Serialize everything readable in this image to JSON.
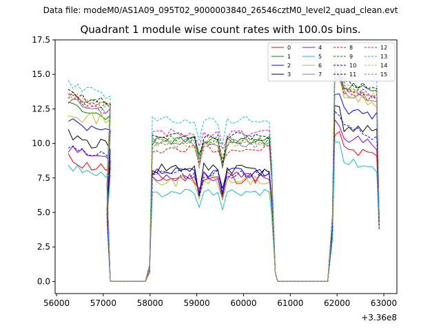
{
  "header": {
    "file_line": "Data file: modeM0/AS1A09_095T02_9000003840_26546cztM0_level2_quad_clean.evt",
    "title": "Quadrant 1 module wise count rates with 100.0s bins."
  },
  "chart_data": {
    "type": "line",
    "x_offset_label": "+3.36e8",
    "xlim": [
      55970,
      63280
    ],
    "ylim": [
      -0.875,
      17.5
    ],
    "x_ticks": [
      56000,
      57000,
      58000,
      59000,
      60000,
      61000,
      62000,
      63000
    ],
    "x_tick_labels": [
      "56000",
      "57000",
      "58000",
      "59000",
      "60000",
      "61000",
      "62000",
      "63000"
    ],
    "y_ticks": [
      0,
      2.5,
      5,
      7.5,
      10,
      12.5,
      15,
      17.5
    ],
    "y_tick_labels": [
      "0.0",
      "2.5",
      "5.0",
      "7.5",
      "10.0",
      "12.5",
      "15.0",
      "17.5"
    ],
    "legend": {
      "placement": "top-right",
      "columns": [
        [
          "0",
          "1",
          "2",
          "3"
        ],
        [
          "4",
          "5",
          "6",
          "7"
        ],
        [
          "8",
          "9",
          "10",
          "11"
        ],
        [
          "12",
          "13",
          "14",
          "15"
        ]
      ]
    },
    "segments": [
      {
        "start": 56250,
        "n": 10
      },
      {
        "start": 58050,
        "n": 26
      },
      {
        "start": 61950,
        "n": 10
      }
    ],
    "gap_x": [
      57150,
      57300,
      57500,
      57700,
      57900,
      61000,
      61200,
      61400,
      61600,
      61800
    ],
    "series": [
      {
        "name": "0",
        "color": "#ff0000",
        "dash": "solid",
        "base": [
          8.6,
          7.5,
          9.7
        ],
        "noise": 0.45,
        "seed": 11
      },
      {
        "name": "1",
        "color": "#008000",
        "dash": "solid",
        "base": [
          12.4,
          10.2,
          14.4
        ],
        "noise": 0.35,
        "seed": 23
      },
      {
        "name": "2",
        "color": "#0000ff",
        "dash": "solid",
        "base": [
          11.2,
          7.9,
          12.7
        ],
        "noise": 0.35,
        "seed": 37
      },
      {
        "name": "3",
        "color": "#000000",
        "dash": "solid",
        "base": [
          10.3,
          8.2,
          11.4
        ],
        "noise": 0.45,
        "seed": 41
      },
      {
        "name": "4",
        "color": "#9400d3",
        "dash": "solid",
        "base": [
          9.4,
          7.6,
          10.6
        ],
        "noise": 0.35,
        "seed": 53
      },
      {
        "name": "5",
        "color": "#17becf",
        "dash": "solid",
        "base": [
          8.0,
          6.4,
          8.9
        ],
        "noise": 0.3,
        "seed": 61
      },
      {
        "name": "6",
        "color": "#bcbd22",
        "dash": "solid",
        "base": [
          12.1,
          7.3,
          13.6
        ],
        "noise": 0.45,
        "seed": 71
      },
      {
        "name": "7",
        "color": "#7f7f7f",
        "dash": "solid",
        "base": [
          12.9,
          10.1,
          13.9
        ],
        "noise": 0.35,
        "seed": 83
      },
      {
        "name": "8",
        "color": "#ff0000",
        "dash": "dashed",
        "base": [
          13.1,
          9.6,
          13.9
        ],
        "noise": 0.35,
        "seed": 97
      },
      {
        "name": "9",
        "color": "#008000",
        "dash": "dashed",
        "base": [
          13.2,
          10.3,
          14.1
        ],
        "noise": 0.35,
        "seed": 101
      },
      {
        "name": "10",
        "color": "#0000ff",
        "dash": "dashed",
        "base": [
          9.6,
          7.8,
          11.2
        ],
        "noise": 0.35,
        "seed": 113
      },
      {
        "name": "11",
        "color": "#000000",
        "dash": "dashed",
        "base": [
          13.4,
          10.5,
          14.6
        ],
        "noise": 0.3,
        "seed": 127
      },
      {
        "name": "12",
        "color": "#ff00ff",
        "dash": "dashed",
        "base": [
          12.8,
          10.7,
          14.1
        ],
        "noise": 0.35,
        "seed": 131
      },
      {
        "name": "13",
        "color": "#17becf",
        "dash": "dashed",
        "base": [
          14.0,
          11.7,
          15.3
        ],
        "noise": 0.35,
        "seed": 139
      },
      {
        "name": "14",
        "color": "#bcbd22",
        "dash": "dashed",
        "base": [
          13.2,
          10.0,
          14.3
        ],
        "noise": 0.35,
        "seed": 149
      },
      {
        "name": "15",
        "color": "#7f7f7f",
        "dash": "dashed",
        "base": [
          13.0,
          9.9,
          14.0
        ],
        "noise": 0.35,
        "seed": 157
      }
    ]
  }
}
